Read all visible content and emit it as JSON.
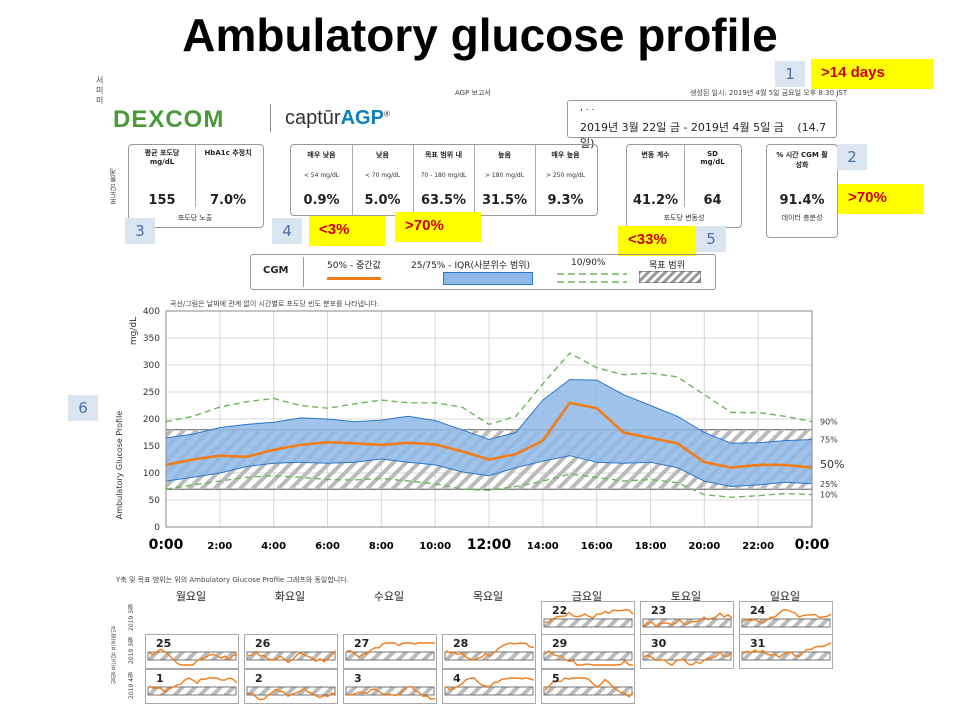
{
  "slide": {
    "title": "Ambulatory glucose profile"
  },
  "callouts": [
    {
      "n": "1",
      "label": ">14 days"
    },
    {
      "n": "2",
      "label": ">70%"
    },
    {
      "n": "3",
      "label": ""
    },
    {
      "n": "4",
      "label": "<3%"
    },
    {
      "n": "4b",
      "label": ">70%"
    },
    {
      "n": "5",
      "label": "<33%"
    },
    {
      "n": "6",
      "label": ""
    }
  ],
  "report": {
    "header_left": "서\n미\n미",
    "header_center": "AGP 보고서",
    "header_right": "생성된 일시: 2019년 4월 5일 금요일 오후 8:30 JST",
    "brand": "DEXCOM",
    "product_prefix": "captūr",
    "product_suffix": "AGP",
    "name_line": ",   .   .",
    "date_range": "2019년 3월 22일 금 - 2019년 4월 5일 금",
    "days": "(14.7일)",
    "side_label": "포도당 통계"
  },
  "stats": {
    "exposure": {
      "cols": [
        {
          "hdr": "평균 포도당\nmg/dL",
          "val": "155"
        },
        {
          "hdr": "HbA1c 추정치",
          "val": "7.0%"
        }
      ],
      "foot": "포도당 노출"
    },
    "ranges": {
      "cols": [
        {
          "hdr": "매우 낮음",
          "sub": "< 54 mg/dL",
          "val": "0.9%"
        },
        {
          "hdr": "낮음",
          "sub": "< 70 mg/dL",
          "val": "5.0%"
        },
        {
          "hdr": "목표 범위 내",
          "sub": "70 - 180 mg/dL",
          "val": "63.5%"
        },
        {
          "hdr": "높음",
          "sub": "> 180 mg/dL",
          "val": "31.5%"
        },
        {
          "hdr": "매우 높음",
          "sub": "> 250 mg/dL",
          "val": "9.3%"
        }
      ]
    },
    "variability": {
      "cols": [
        {
          "hdr": "변동 계수",
          "val": "41.2%"
        },
        {
          "hdr": "SD\nmg/dL",
          "val": "64"
        }
      ],
      "foot": "포도당 변동성"
    },
    "sufficiency": {
      "hdr": "% 시간 CGM 활\n성화",
      "val": "91.4%",
      "foot": "데이터 충분성"
    }
  },
  "legend": {
    "cgm": "CGM",
    "items": [
      {
        "label": "50% - 중간값"
      },
      {
        "label": "25/75% - IQR(사분위수 범위)"
      },
      {
        "label": "10/90%"
      },
      {
        "label": "목표 범위"
      }
    ]
  },
  "chart_data": {
    "type": "area",
    "title": "",
    "note": "곡선/그림은 날짜에 관계 없이 시간별로 포도당 빈도 분포를 나타냅니다.",
    "ylabel": "Ambulatory Glucose Profile",
    "yunit": "mg/dL",
    "ylim": [
      0,
      400
    ],
    "yticks": [
      0,
      50,
      100,
      150,
      200,
      250,
      300,
      350,
      400
    ],
    "xlim": [
      0,
      24
    ],
    "xticks": [
      {
        "v": 0,
        "label": "0:00",
        "big": true
      },
      {
        "v": 2,
        "label": "2:00",
        "big": false
      },
      {
        "v": 4,
        "label": "4:00",
        "big": false
      },
      {
        "v": 6,
        "label": "6:00",
        "big": false
      },
      {
        "v": 8,
        "label": "8:00",
        "big": false
      },
      {
        "v": 10,
        "label": "10:00",
        "big": false
      },
      {
        "v": 12,
        "label": "12:00",
        "big": true
      },
      {
        "v": 14,
        "label": "14:00",
        "big": false
      },
      {
        "v": 16,
        "label": "16:00",
        "big": false
      },
      {
        "v": 18,
        "label": "18:00",
        "big": false
      },
      {
        "v": 20,
        "label": "20:00",
        "big": false
      },
      {
        "v": 22,
        "label": "22:00",
        "big": false
      },
      {
        "v": 24,
        "label": "0:00",
        "big": true
      }
    ],
    "target_range": [
      70,
      180
    ],
    "x": [
      0,
      1,
      2,
      3,
      4,
      5,
      6,
      7,
      8,
      9,
      10,
      11,
      12,
      13,
      14,
      15,
      16,
      17,
      18,
      19,
      20,
      21,
      22,
      23,
      24
    ],
    "series": [
      {
        "name": "90%",
        "values": [
          195,
          205,
          222,
          232,
          238,
          225,
          220,
          228,
          235,
          230,
          230,
          222,
          190,
          205,
          265,
          322,
          295,
          282,
          285,
          278,
          245,
          212,
          212,
          205,
          195
        ]
      },
      {
        "name": "75%",
        "values": [
          165,
          172,
          184,
          190,
          194,
          202,
          200,
          195,
          198,
          205,
          197,
          180,
          162,
          175,
          235,
          273,
          272,
          245,
          225,
          205,
          175,
          155,
          156,
          160,
          162
        ]
      },
      {
        "name": "50%",
        "values": [
          115,
          125,
          132,
          130,
          143,
          152,
          157,
          155,
          152,
          156,
          153,
          140,
          125,
          135,
          160,
          230,
          220,
          175,
          165,
          155,
          120,
          110,
          115,
          115,
          110
        ]
      },
      {
        "name": "25%",
        "values": [
          85,
          92,
          100,
          112,
          118,
          120,
          118,
          120,
          126,
          120,
          115,
          102,
          95,
          110,
          122,
          132,
          120,
          118,
          120,
          110,
          85,
          75,
          78,
          83,
          80
        ]
      },
      {
        "name": "10%",
        "values": [
          70,
          78,
          85,
          92,
          95,
          92,
          88,
          87,
          90,
          85,
          80,
          70,
          68,
          75,
          85,
          98,
          92,
          85,
          88,
          82,
          60,
          55,
          58,
          62,
          60
        ]
      }
    ],
    "right_labels": [
      {
        "label": "90%",
        "y": 195
      },
      {
        "label": "75%",
        "y": 162
      },
      {
        "label": "50%",
        "y": 115
      },
      {
        "label": "25%",
        "y": 80
      },
      {
        "label": "10%",
        "y": 60
      }
    ]
  },
  "daily": {
    "note": "Y축 및 목표 범위는 위의 Ambulatory Glucose Profile 그래프와 동일합니다.",
    "side_label": "일일 포도당 프로파일",
    "month_labels": [
      "2019 3월",
      "2019 3월",
      "2019 4월"
    ],
    "days": [
      "월요일",
      "화요일",
      "수요일",
      "목요일",
      "금요일",
      "토요일",
      "일요일"
    ],
    "rows": [
      [
        null,
        null,
        null,
        null,
        "22",
        "23",
        "24"
      ],
      [
        "25",
        "26",
        "27",
        "28",
        "29",
        "30",
        "31"
      ],
      [
        "1",
        "2",
        "3",
        "4",
        "5",
        null,
        null
      ]
    ]
  },
  "colors": {
    "median": "#f07c1a",
    "iqr_fill": "#8fb8e8",
    "iqr_line": "#2e76c8",
    "p10_90": "#6bb85a",
    "target": "#999999",
    "callout_bg": "#ffff00",
    "callout_text": "#d00000"
  }
}
